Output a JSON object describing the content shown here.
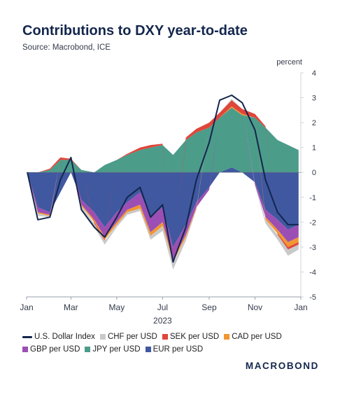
{
  "header": {
    "title": "Contributions to DXY year-to-date",
    "source": "Source: Macrobond, ICE",
    "unit": "percent"
  },
  "brand": {
    "logo_text": "MACROBOND"
  },
  "legend": {
    "row1": [
      {
        "label": "U.S. Dollar Index",
        "color": "#13264d",
        "kind": "line"
      },
      {
        "label": "CHF per USD",
        "color": "#c9c9c9",
        "kind": "box"
      },
      {
        "label": "SEK per USD",
        "color": "#e0453a",
        "kind": "box"
      },
      {
        "label": "CAD per USD",
        "color": "#f29630",
        "kind": "box"
      }
    ],
    "row2": [
      {
        "label": "GBP per USD",
        "color": "#9b4fb4",
        "kind": "box"
      },
      {
        "label": "JPY per USD",
        "color": "#4c9c8a",
        "kind": "box"
      },
      {
        "label": "EUR per USD",
        "color": "#3f58a0",
        "kind": "box"
      }
    ]
  },
  "chart_data": {
    "type": "area",
    "stacked": true,
    "title": "Contributions to DXY year-to-date",
    "ylabel": "percent",
    "xlabel": "2023",
    "x_ticks": [
      "Jan",
      "Mar",
      "May",
      "Jul",
      "Sep",
      "Nov",
      "Jan"
    ],
    "x_range": [
      "2023-01-01",
      "2024-01-01"
    ],
    "ylim": [
      -5,
      4
    ],
    "y_ticks": [
      4,
      3,
      2,
      1,
      0,
      -1,
      -2,
      -3,
      -4,
      -5
    ],
    "y_axis_side": "right",
    "x": [
      "2023-01-02",
      "2023-01-16",
      "2023-02-01",
      "2023-02-15",
      "2023-03-01",
      "2023-03-15",
      "2023-04-01",
      "2023-04-15",
      "2023-05-01",
      "2023-05-15",
      "2023-06-01",
      "2023-06-15",
      "2023-07-01",
      "2023-07-15",
      "2023-08-01",
      "2023-08-15",
      "2023-09-01",
      "2023-09-15",
      "2023-10-01",
      "2023-10-15",
      "2023-11-01",
      "2023-11-15",
      "2023-12-01",
      "2023-12-15",
      "2023-12-29"
    ],
    "series": [
      {
        "name": "EUR per USD",
        "color": "#3f58a0",
        "values": [
          0,
          -1.4,
          -1.6,
          -0.8,
          0,
          -1.1,
          -1.6,
          -2.2,
          -1.6,
          -1.2,
          -0.8,
          -1.8,
          -1.4,
          -3.0,
          -2.1,
          -1.2,
          -0.6,
          0,
          0.2,
          0,
          -0.4,
          -1.5,
          -1.9,
          -2.3,
          -2.1
        ]
      },
      {
        "name": "JPY per USD",
        "color": "#4c9c8a",
        "values": [
          0,
          0,
          0.1,
          0.5,
          0.5,
          0.1,
          0,
          0.3,
          0.5,
          0.7,
          0.9,
          1.0,
          1.1,
          0.7,
          1.3,
          1.6,
          1.8,
          2.2,
          2.4,
          2.3,
          2.2,
          1.8,
          1.3,
          1.1,
          0.9
        ]
      },
      {
        "name": "GBP per USD",
        "color": "#9b4fb4",
        "values": [
          0,
          -0.2,
          -0.1,
          0,
          0,
          -0.2,
          -0.3,
          -0.4,
          -0.4,
          -0.3,
          -0.5,
          -0.6,
          -0.6,
          -0.5,
          -0.4,
          -0.2,
          -0.1,
          0,
          0,
          0,
          -0.1,
          -0.3,
          -0.4,
          -0.5,
          -0.5
        ]
      },
      {
        "name": "CAD per USD",
        "color": "#f29630",
        "values": [
          0,
          -0.05,
          -0.05,
          0,
          0,
          -0.05,
          -0.1,
          -0.1,
          -0.1,
          -0.1,
          -0.15,
          -0.15,
          -0.15,
          -0.1,
          -0.1,
          -0.05,
          0,
          0,
          0.05,
          0.05,
          0,
          -0.1,
          -0.15,
          -0.2,
          -0.2
        ]
      },
      {
        "name": "SEK per USD",
        "color": "#e0453a",
        "values": [
          0,
          0,
          0.05,
          0.1,
          0.05,
          0,
          -0.05,
          -0.05,
          0,
          0.05,
          0.1,
          0.1,
          0.05,
          -0.05,
          0.1,
          0.15,
          0.2,
          0.2,
          0.25,
          0.2,
          0.15,
          0.05,
          -0.05,
          -0.1,
          -0.1
        ]
      },
      {
        "name": "CHF per USD",
        "color": "#c9c9c9",
        "values": [
          0,
          -0.1,
          -0.05,
          0,
          0,
          -0.1,
          -0.15,
          -0.15,
          -0.1,
          -0.1,
          -0.1,
          -0.15,
          -0.2,
          -0.25,
          -0.15,
          -0.05,
          0,
          0,
          0.05,
          0,
          -0.05,
          -0.15,
          -0.2,
          -0.25,
          -0.2
        ]
      },
      {
        "name": "U.S. Dollar Index",
        "color": "#13264d",
        "type": "line",
        "values": [
          0,
          -1.9,
          -1.8,
          -0.3,
          0.6,
          -1.5,
          -2.2,
          -2.6,
          -1.8,
          -1.0,
          -0.6,
          -1.8,
          -1.3,
          -3.6,
          -2.2,
          -0.3,
          1.2,
          2.9,
          3.1,
          2.8,
          1.7,
          -0.3,
          -1.6,
          -2.1,
          -2.1
        ]
      }
    ]
  }
}
